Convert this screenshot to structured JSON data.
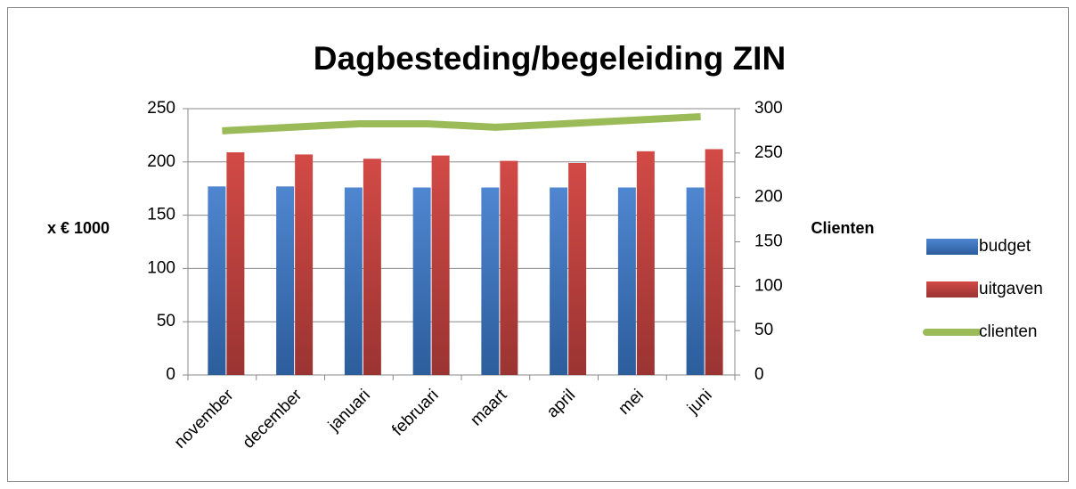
{
  "chart_data": {
    "type": "bar",
    "title": "Dagbesteding/begeleiding ZIN",
    "ylabel": "x € 1000",
    "y2label": "Clienten",
    "categories": [
      "november",
      "december",
      "januari",
      "februari",
      "maart",
      "april",
      "mei",
      "juni"
    ],
    "series": [
      {
        "name": "budget",
        "color": "#4a7ebb",
        "type": "bar",
        "values": [
          177,
          177,
          176,
          176,
          176,
          176,
          176,
          176
        ]
      },
      {
        "name": "uitgaven",
        "color": "#c0504d",
        "type": "bar",
        "values": [
          209,
          207,
          203,
          206,
          201,
          199,
          210,
          212
        ]
      },
      {
        "name": "clienten",
        "color": "#9bbb59",
        "type": "line",
        "axis": "y2",
        "values": [
          275,
          279,
          283,
          283,
          279,
          283,
          287,
          291
        ]
      }
    ],
    "ylim": [
      0,
      250
    ],
    "yticks": [
      0,
      50,
      100,
      150,
      200,
      250
    ],
    "y2lim": [
      0,
      300
    ],
    "y2ticks": [
      0,
      50,
      100,
      150,
      200,
      250,
      300
    ],
    "grid": true,
    "legend": "right"
  }
}
